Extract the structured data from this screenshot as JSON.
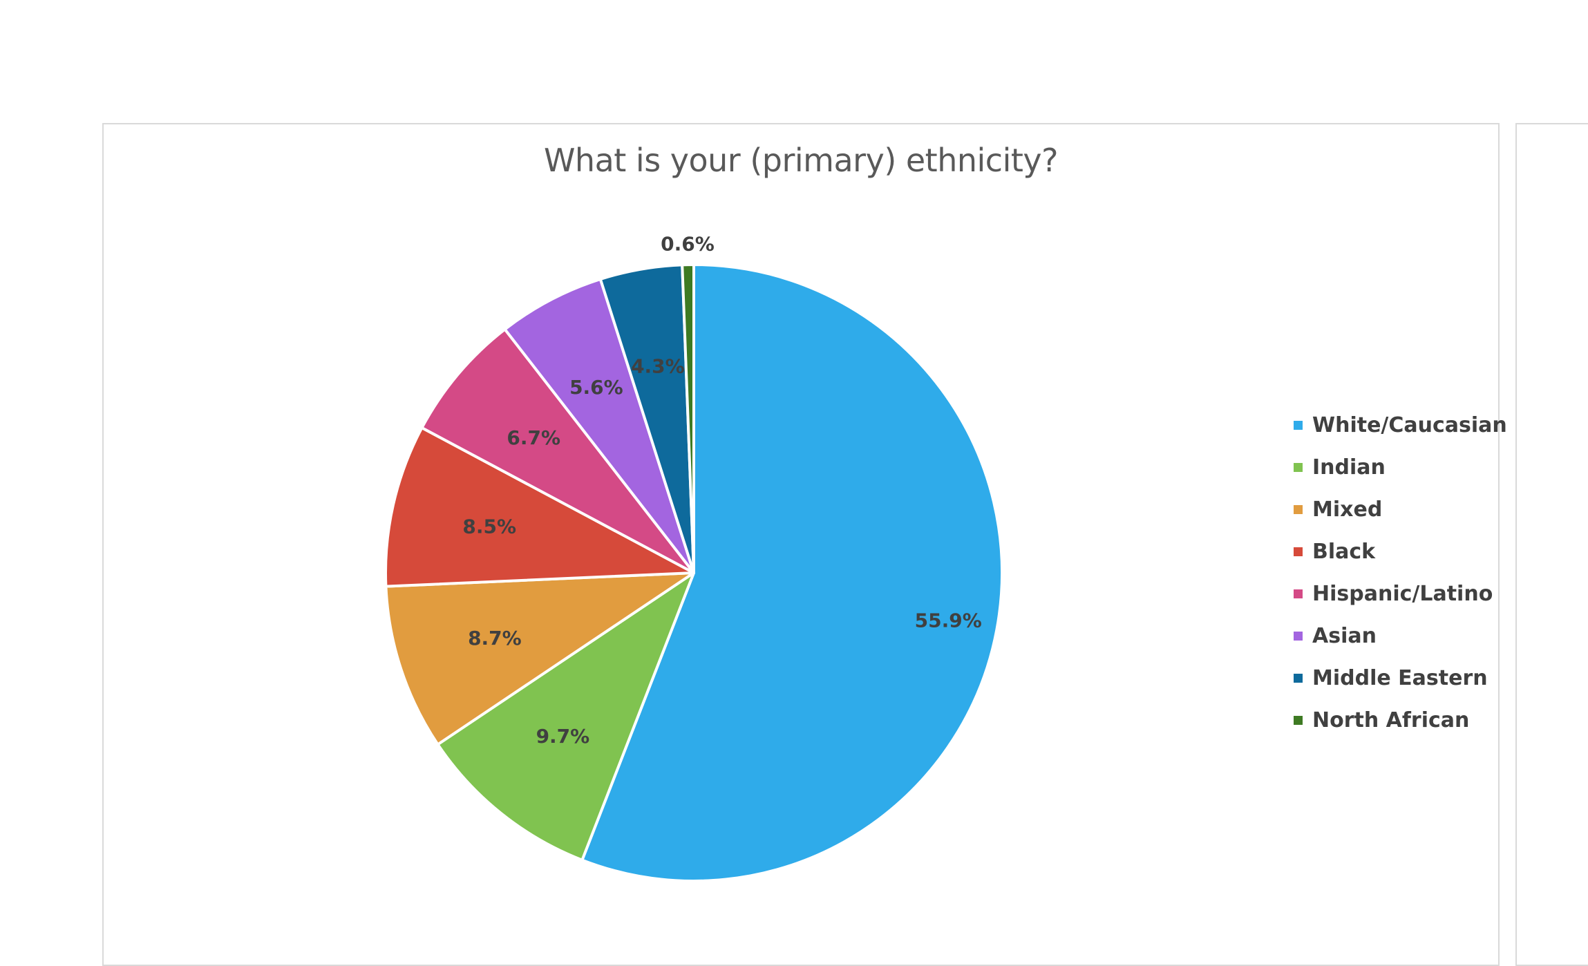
{
  "chart_data": {
    "type": "pie",
    "title": "What is your (primary) ethnicity?",
    "categories": [
      "White/Caucasian",
      "Indian",
      "Mixed",
      "Black",
      "Hispanic/Latino",
      "Asian",
      "Middle Eastern",
      "North African"
    ],
    "values": [
      55.9,
      9.7,
      8.7,
      8.5,
      6.7,
      5.6,
      4.3,
      0.6
    ],
    "data_labels": [
      "55.9%",
      "9.7%",
      "8.7%",
      "8.5%",
      "6.7%",
      "5.6%",
      "4.3%",
      "0.6%"
    ],
    "colors": [
      "#2fabea",
      "#80c350",
      "#e19c3f",
      "#d64a3a",
      "#d44a86",
      "#a365e0",
      "#0e6a9c",
      "#3e7a23"
    ],
    "legend_position": "right",
    "start_angle": "12 o'clock",
    "direction": "clockwise"
  }
}
